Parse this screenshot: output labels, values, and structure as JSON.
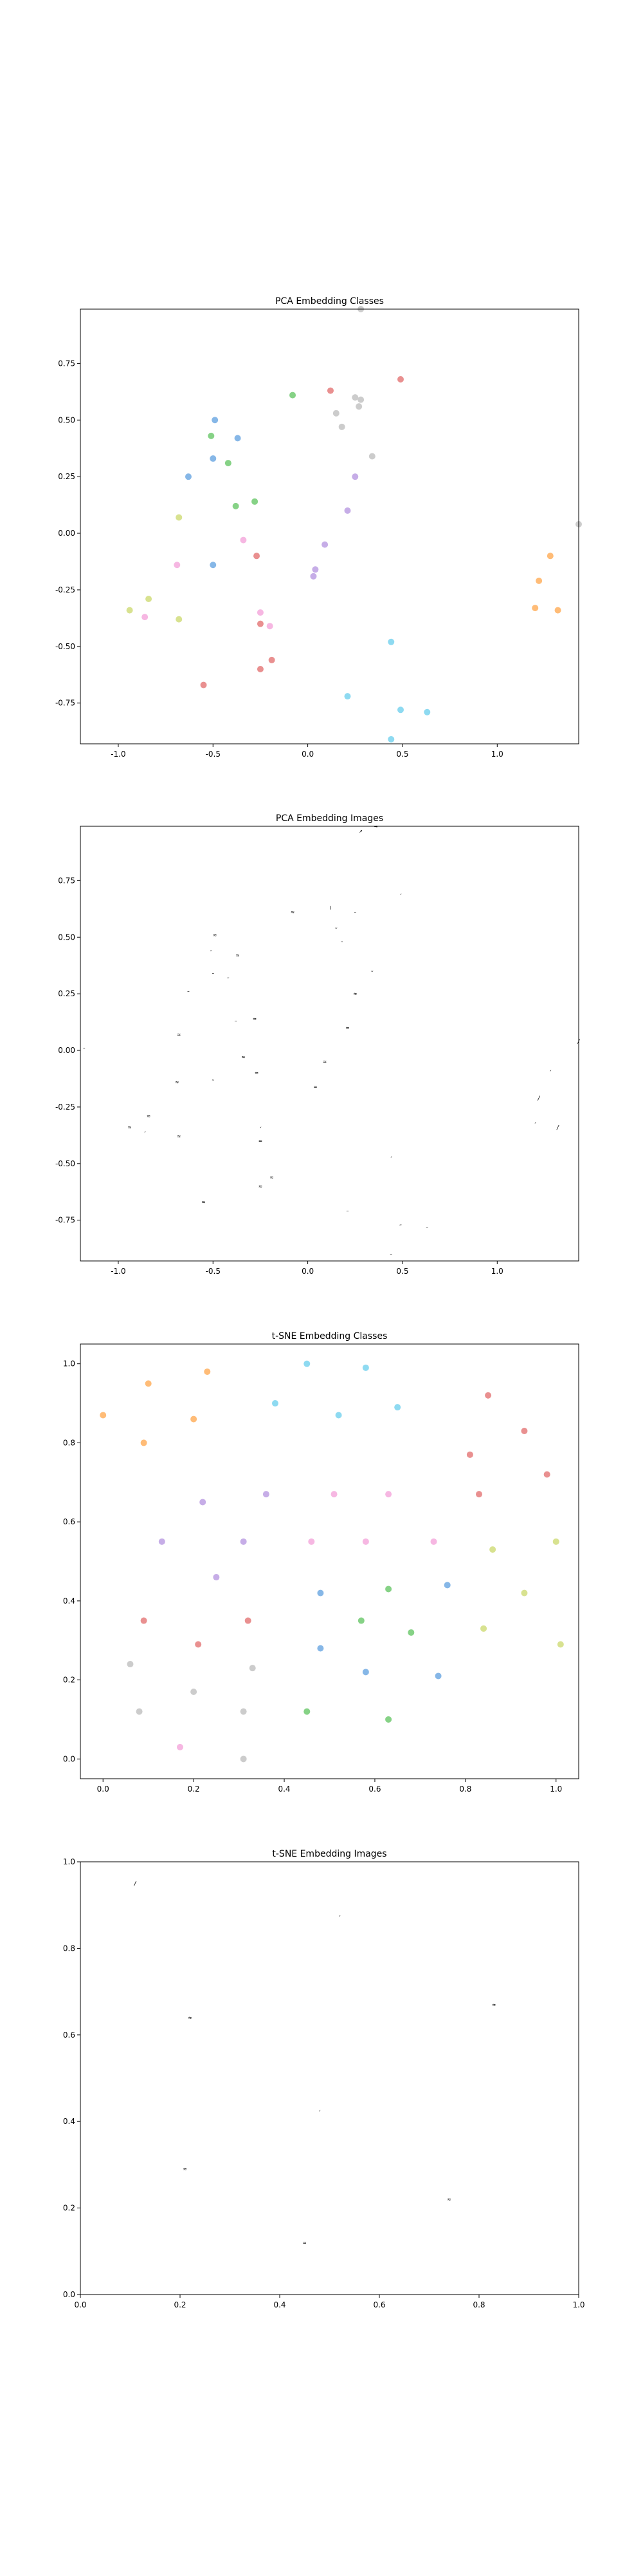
{
  "chart_data": [
    {
      "type": "scatter",
      "title": "PCA Embedding Classes",
      "xlim": [
        -1.2,
        1.43
      ],
      "ylim": [
        -0.93,
        0.99
      ],
      "xticks": [
        "-1.0",
        "-0.5",
        "0.0",
        "0.5",
        "1.0"
      ],
      "xtick_values": [
        -1.0,
        -0.5,
        0.0,
        0.5,
        1.0
      ],
      "yticks": [
        "-0.75",
        "-0.50",
        "-0.25",
        "0.00",
        "0.25",
        "0.50",
        "0.75"
      ],
      "ytick_values": [
        -0.75,
        -0.5,
        -0.25,
        0.0,
        0.25,
        0.5,
        0.75
      ],
      "points": [
        {
          "x": 0.28,
          "y": 0.99,
          "color": "#c9c9c9"
        },
        {
          "x": 0.12,
          "y": 0.63,
          "color": "#e88a8a"
        },
        {
          "x": 0.49,
          "y": 0.68,
          "color": "#e88a8a"
        },
        {
          "x": 0.25,
          "y": 0.6,
          "color": "#c9c9c9"
        },
        {
          "x": 0.28,
          "y": 0.59,
          "color": "#c9c9c9"
        },
        {
          "x": 0.27,
          "y": 0.56,
          "color": "#c9c9c9"
        },
        {
          "x": 0.15,
          "y": 0.53,
          "color": "#c9c9c9"
        },
        {
          "x": 0.18,
          "y": 0.47,
          "color": "#c9c9c9"
        },
        {
          "x": -0.08,
          "y": 0.61,
          "color": "#7fd07f"
        },
        {
          "x": -0.49,
          "y": 0.5,
          "color": "#80b3e6"
        },
        {
          "x": -0.51,
          "y": 0.43,
          "color": "#7fd07f"
        },
        {
          "x": -0.37,
          "y": 0.42,
          "color": "#80b3e6"
        },
        {
          "x": -0.5,
          "y": 0.33,
          "color": "#80b3e6"
        },
        {
          "x": -0.42,
          "y": 0.31,
          "color": "#7fd07f"
        },
        {
          "x": -0.63,
          "y": 0.25,
          "color": "#80b3e6"
        },
        {
          "x": 0.34,
          "y": 0.34,
          "color": "#c9c9c9"
        },
        {
          "x": 0.25,
          "y": 0.25,
          "color": "#c3a9e6"
        },
        {
          "x": -0.28,
          "y": 0.14,
          "color": "#7fd07f"
        },
        {
          "x": -0.38,
          "y": 0.12,
          "color": "#7fd07f"
        },
        {
          "x": 0.21,
          "y": 0.1,
          "color": "#c3a9e6"
        },
        {
          "x": -0.68,
          "y": 0.07,
          "color": "#d6e08a"
        },
        {
          "x": -0.34,
          "y": -0.03,
          "color": "#f5b3e0"
        },
        {
          "x": 0.09,
          "y": -0.05,
          "color": "#c3a9e6"
        },
        {
          "x": -0.27,
          "y": -0.1,
          "color": "#e88a8a"
        },
        {
          "x": -0.69,
          "y": -0.14,
          "color": "#f5b3e0"
        },
        {
          "x": -0.5,
          "y": -0.14,
          "color": "#80b3e6"
        },
        {
          "x": 0.04,
          "y": -0.16,
          "color": "#c3a9e6"
        },
        {
          "x": 0.03,
          "y": -0.19,
          "color": "#c3a9e6"
        },
        {
          "x": 1.28,
          "y": -0.1,
          "color": "#ffb870"
        },
        {
          "x": 1.22,
          "y": -0.21,
          "color": "#ffb870"
        },
        {
          "x": 1.43,
          "y": 0.04,
          "color": "#c9c9c9"
        },
        {
          "x": -0.84,
          "y": -0.29,
          "color": "#d6e08a"
        },
        {
          "x": -0.94,
          "y": -0.34,
          "color": "#d6e08a"
        },
        {
          "x": -0.86,
          "y": -0.37,
          "color": "#f5b3e0"
        },
        {
          "x": -0.68,
          "y": -0.38,
          "color": "#d6e08a"
        },
        {
          "x": -0.25,
          "y": -0.35,
          "color": "#f5b3e0"
        },
        {
          "x": -0.25,
          "y": -0.4,
          "color": "#e88a8a"
        },
        {
          "x": -0.2,
          "y": -0.41,
          "color": "#f5b3e0"
        },
        {
          "x": 1.2,
          "y": -0.33,
          "color": "#ffb870"
        },
        {
          "x": 1.32,
          "y": -0.34,
          "color": "#ffb870"
        },
        {
          "x": 0.44,
          "y": -0.48,
          "color": "#88d8f0"
        },
        {
          "x": -0.19,
          "y": -0.56,
          "color": "#e88a8a"
        },
        {
          "x": -0.25,
          "y": -0.6,
          "color": "#e88a8a"
        },
        {
          "x": -0.55,
          "y": -0.67,
          "color": "#e88a8a"
        },
        {
          "x": 0.21,
          "y": -0.72,
          "color": "#88d8f0"
        },
        {
          "x": 0.49,
          "y": -0.78,
          "color": "#88d8f0"
        },
        {
          "x": 0.63,
          "y": -0.79,
          "color": "#88d8f0"
        },
        {
          "x": 0.44,
          "y": -0.91,
          "color": "#88d8f0"
        }
      ]
    },
    {
      "type": "scatter",
      "title": "PCA Embedding Images",
      "xlim": [
        -1.2,
        1.43
      ],
      "ylim": [
        -0.93,
        0.99
      ],
      "xticks": [
        "-1.0",
        "-0.5",
        "0.0",
        "0.5",
        "1.0"
      ],
      "xtick_values": [
        -1.0,
        -0.5,
        0.0,
        0.5,
        1.0
      ],
      "yticks": [
        "-0.75",
        "-0.50",
        "-0.25",
        "0.00",
        "0.25",
        "0.50",
        "0.75"
      ],
      "ytick_values": [
        -0.75,
        -0.5,
        -0.25,
        0.0,
        0.25,
        0.5,
        0.75
      ],
      "points": [
        {
          "x": 0.28,
          "y": 0.97,
          "glyph": "↗"
        },
        {
          "x": 0.36,
          "y": 0.99,
          "glyph": "→"
        },
        {
          "x": 0.12,
          "y": 0.63,
          "glyph": "≀"
        },
        {
          "x": 0.49,
          "y": 0.68,
          "glyph": "´"
        },
        {
          "x": 0.25,
          "y": 0.6,
          "glyph": "˜"
        },
        {
          "x": -0.08,
          "y": 0.61,
          "glyph": "≈"
        },
        {
          "x": -0.49,
          "y": 0.51,
          "glyph": "≈"
        },
        {
          "x": 0.15,
          "y": 0.53,
          "glyph": "˜"
        },
        {
          "x": -0.51,
          "y": 0.43,
          "glyph": "˜"
        },
        {
          "x": -0.37,
          "y": 0.42,
          "glyph": "≈"
        },
        {
          "x": 0.18,
          "y": 0.47,
          "glyph": "˜"
        },
        {
          "x": -0.5,
          "y": 0.33,
          "glyph": "˜"
        },
        {
          "x": -0.42,
          "y": 0.31,
          "glyph": "˜"
        },
        {
          "x": 0.34,
          "y": 0.34,
          "glyph": "˜"
        },
        {
          "x": -0.63,
          "y": 0.25,
          "glyph": "˜"
        },
        {
          "x": 0.25,
          "y": 0.25,
          "glyph": "≈"
        },
        {
          "x": -0.28,
          "y": 0.14,
          "glyph": "≈"
        },
        {
          "x": -0.38,
          "y": 0.12,
          "glyph": "˜"
        },
        {
          "x": 0.21,
          "y": 0.1,
          "glyph": "≈"
        },
        {
          "x": -0.68,
          "y": 0.07,
          "glyph": "≈"
        },
        {
          "x": -1.18,
          "y": 0.0,
          "glyph": "˜"
        },
        {
          "x": -0.34,
          "y": -0.03,
          "glyph": "≈"
        },
        {
          "x": 0.09,
          "y": -0.05,
          "glyph": "≈"
        },
        {
          "x": 1.43,
          "y": 0.04,
          "glyph": "∕"
        },
        {
          "x": -0.27,
          "y": -0.1,
          "glyph": "≈"
        },
        {
          "x": -0.69,
          "y": -0.14,
          "glyph": "≈"
        },
        {
          "x": -0.5,
          "y": -0.14,
          "glyph": "˜"
        },
        {
          "x": 0.04,
          "y": -0.16,
          "glyph": "≈"
        },
        {
          "x": 1.28,
          "y": -0.1,
          "glyph": "´"
        },
        {
          "x": 1.22,
          "y": -0.21,
          "glyph": "∕"
        },
        {
          "x": -0.84,
          "y": -0.29,
          "glyph": "≈"
        },
        {
          "x": -0.94,
          "y": -0.34,
          "glyph": "≈"
        },
        {
          "x": -0.25,
          "y": -0.35,
          "glyph": "´"
        },
        {
          "x": -0.86,
          "y": -0.37,
          "glyph": "´"
        },
        {
          "x": -0.68,
          "y": -0.38,
          "glyph": "≈"
        },
        {
          "x": -0.25,
          "y": -0.4,
          "glyph": "≈"
        },
        {
          "x": 1.2,
          "y": -0.33,
          "glyph": "´"
        },
        {
          "x": 1.32,
          "y": -0.34,
          "glyph": "∕"
        },
        {
          "x": 0.44,
          "y": -0.48,
          "glyph": "´"
        },
        {
          "x": -0.19,
          "y": -0.56,
          "glyph": "≈"
        },
        {
          "x": -0.25,
          "y": -0.6,
          "glyph": "≈"
        },
        {
          "x": -0.55,
          "y": -0.67,
          "glyph": "≈"
        },
        {
          "x": 0.21,
          "y": -0.72,
          "glyph": "˜"
        },
        {
          "x": 0.49,
          "y": -0.78,
          "glyph": "˜"
        },
        {
          "x": 0.63,
          "y": -0.79,
          "glyph": "˜"
        },
        {
          "x": 0.44,
          "y": -0.91,
          "glyph": "˜"
        }
      ]
    },
    {
      "type": "scatter",
      "title": "t-SNE Embedding Classes",
      "xlim": [
        -0.05,
        1.05
      ],
      "ylim": [
        -0.05,
        1.05
      ],
      "xticks": [
        "0.0",
        "0.2",
        "0.4",
        "0.6",
        "0.8",
        "1.0"
      ],
      "xtick_values": [
        0.0,
        0.2,
        0.4,
        0.6,
        0.8,
        1.0
      ],
      "yticks": [
        "0.0",
        "0.2",
        "0.4",
        "0.6",
        "0.8",
        "1.0"
      ],
      "ytick_values": [
        0.0,
        0.2,
        0.4,
        0.6,
        0.8,
        1.0
      ],
      "points": [
        {
          "x": 0.0,
          "y": 0.87,
          "color": "#ffb870"
        },
        {
          "x": 0.1,
          "y": 0.95,
          "color": "#ffb870"
        },
        {
          "x": 0.09,
          "y": 0.8,
          "color": "#ffb870"
        },
        {
          "x": 0.2,
          "y": 0.86,
          "color": "#ffb870"
        },
        {
          "x": 0.23,
          "y": 0.98,
          "color": "#ffb870"
        },
        {
          "x": 0.45,
          "y": 1.0,
          "color": "#88d8f0"
        },
        {
          "x": 0.58,
          "y": 0.99,
          "color": "#88d8f0"
        },
        {
          "x": 0.38,
          "y": 0.9,
          "color": "#88d8f0"
        },
        {
          "x": 0.52,
          "y": 0.87,
          "color": "#88d8f0"
        },
        {
          "x": 0.65,
          "y": 0.89,
          "color": "#88d8f0"
        },
        {
          "x": 0.85,
          "y": 0.92,
          "color": "#e88a8a"
        },
        {
          "x": 0.93,
          "y": 0.83,
          "color": "#e88a8a"
        },
        {
          "x": 0.81,
          "y": 0.77,
          "color": "#e88a8a"
        },
        {
          "x": 0.98,
          "y": 0.72,
          "color": "#e88a8a"
        },
        {
          "x": 0.83,
          "y": 0.67,
          "color": "#e88a8a"
        },
        {
          "x": 0.22,
          "y": 0.65,
          "color": "#c3a9e6"
        },
        {
          "x": 0.36,
          "y": 0.67,
          "color": "#c3a9e6"
        },
        {
          "x": 0.13,
          "y": 0.55,
          "color": "#c3a9e6"
        },
        {
          "x": 0.31,
          "y": 0.55,
          "color": "#c3a9e6"
        },
        {
          "x": 0.25,
          "y": 0.46,
          "color": "#c3a9e6"
        },
        {
          "x": 0.51,
          "y": 0.67,
          "color": "#f5b3e0"
        },
        {
          "x": 0.63,
          "y": 0.67,
          "color": "#f5b3e0"
        },
        {
          "x": 0.46,
          "y": 0.55,
          "color": "#f5b3e0"
        },
        {
          "x": 0.58,
          "y": 0.55,
          "color": "#f5b3e0"
        },
        {
          "x": 0.73,
          "y": 0.55,
          "color": "#f5b3e0"
        },
        {
          "x": 0.86,
          "y": 0.53,
          "color": "#d6e08a"
        },
        {
          "x": 1.0,
          "y": 0.55,
          "color": "#d6e08a"
        },
        {
          "x": 0.93,
          "y": 0.42,
          "color": "#d6e08a"
        },
        {
          "x": 0.84,
          "y": 0.33,
          "color": "#d6e08a"
        },
        {
          "x": 1.01,
          "y": 0.29,
          "color": "#d6e08a"
        },
        {
          "x": 0.48,
          "y": 0.42,
          "color": "#80b3e6"
        },
        {
          "x": 0.76,
          "y": 0.44,
          "color": "#80b3e6"
        },
        {
          "x": 0.48,
          "y": 0.28,
          "color": "#80b3e6"
        },
        {
          "x": 0.58,
          "y": 0.22,
          "color": "#80b3e6"
        },
        {
          "x": 0.74,
          "y": 0.21,
          "color": "#80b3e6"
        },
        {
          "x": 0.63,
          "y": 0.43,
          "color": "#7fd07f"
        },
        {
          "x": 0.57,
          "y": 0.35,
          "color": "#7fd07f"
        },
        {
          "x": 0.68,
          "y": 0.32,
          "color": "#7fd07f"
        },
        {
          "x": 0.45,
          "y": 0.12,
          "color": "#7fd07f"
        },
        {
          "x": 0.63,
          "y": 0.1,
          "color": "#7fd07f"
        },
        {
          "x": 0.09,
          "y": 0.35,
          "color": "#e88a8a"
        },
        {
          "x": 0.32,
          "y": 0.35,
          "color": "#e88a8a"
        },
        {
          "x": 0.21,
          "y": 0.29,
          "color": "#e88a8a"
        },
        {
          "x": 0.06,
          "y": 0.24,
          "color": "#c9c9c9"
        },
        {
          "x": 0.33,
          "y": 0.23,
          "color": "#c9c9c9"
        },
        {
          "x": 0.2,
          "y": 0.17,
          "color": "#c9c9c9"
        },
        {
          "x": 0.08,
          "y": 0.12,
          "color": "#c9c9c9"
        },
        {
          "x": 0.31,
          "y": 0.12,
          "color": "#c9c9c9"
        },
        {
          "x": 0.17,
          "y": 0.03,
          "color": "#f5b3e0"
        },
        {
          "x": 0.31,
          "y": 0.0,
          "color": "#c9c9c9"
        }
      ]
    },
    {
      "type": "scatter",
      "title": "t-SNE Embedding Images",
      "xlim": [
        0.0,
        1.0
      ],
      "ylim": [
        0.0,
        1.0
      ],
      "xticks": [
        "0.0",
        "0.2",
        "0.4",
        "0.6",
        "0.8",
        "1.0"
      ],
      "xtick_values": [
        0.0,
        0.2,
        0.4,
        0.6,
        0.8,
        1.0
      ],
      "yticks": [
        "0.0",
        "0.2",
        "0.4",
        "0.6",
        "0.8",
        "1.0"
      ],
      "ytick_values": [
        0.0,
        0.2,
        0.4,
        0.6,
        0.8,
        1.0
      ],
      "points": [
        {
          "x": 0.11,
          "y": 0.95,
          "glyph": "∕"
        },
        {
          "x": 0.52,
          "y": 0.87,
          "glyph": "´"
        },
        {
          "x": 0.22,
          "y": 0.64,
          "glyph": "≈"
        },
        {
          "x": 0.83,
          "y": 0.67,
          "glyph": "≈"
        },
        {
          "x": 0.48,
          "y": 0.42,
          "glyph": "´"
        },
        {
          "x": 0.21,
          "y": 0.29,
          "glyph": "≈"
        },
        {
          "x": 0.74,
          "y": 0.22,
          "glyph": "≈"
        },
        {
          "x": 0.45,
          "y": 0.12,
          "glyph": "≈"
        }
      ]
    }
  ]
}
